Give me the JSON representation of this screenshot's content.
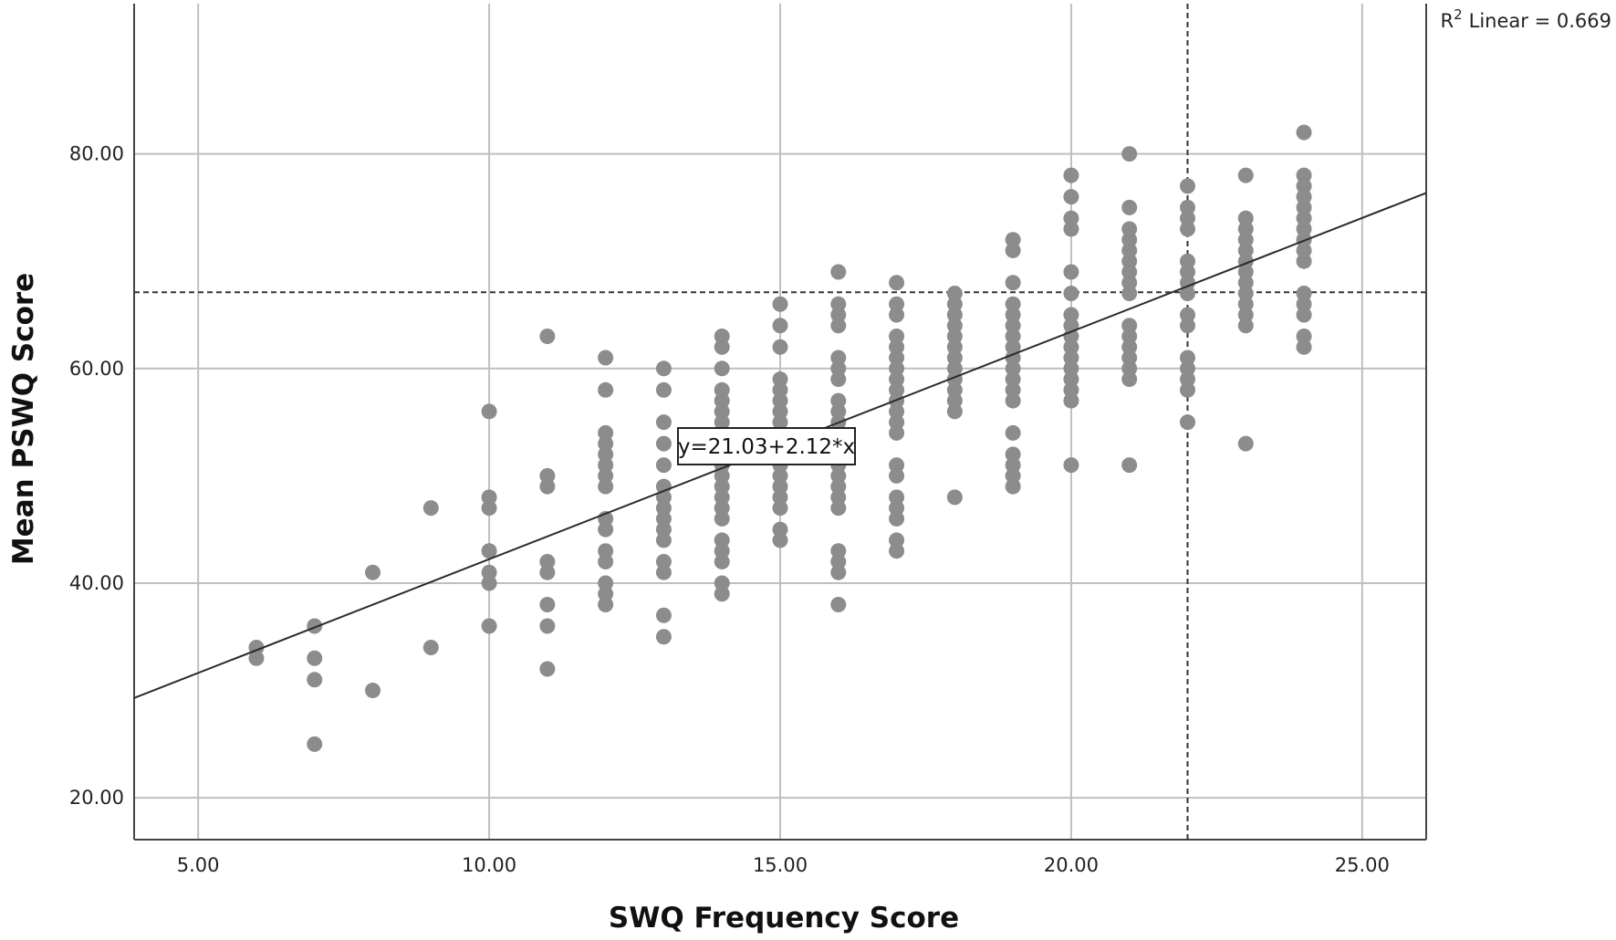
{
  "chart_data": {
    "type": "scatter",
    "xlabel": "SWQ Frequency Score",
    "ylabel": "Mean PSWQ Score",
    "xlim": [
      3.9,
      26.1
    ],
    "ylim": [
      16.1,
      94
    ],
    "x_ticks": [
      "5.00",
      "10.00",
      "15.00",
      "20.00",
      "25.00"
    ],
    "y_ticks": [
      "20.00",
      "40.00",
      "60.00",
      "80.00"
    ],
    "x_tick_values": [
      5,
      10,
      15,
      20,
      25
    ],
    "y_tick_values": [
      20,
      40,
      60,
      80
    ],
    "grid": true,
    "r_squared_label": "Linear = 0.669",
    "r_squared_prefix": "R",
    "r_squared_sup": "2",
    "fit_line": {
      "intercept": 21.03,
      "slope": 2.12,
      "label": "y=21.03+2.12*x"
    },
    "reference_lines": {
      "x": 22,
      "y": 67.1,
      "style": "dashed"
    },
    "point_color": "#8c8c8c",
    "line_color": "#2b2b2b",
    "grid_color": "#bfbfbf",
    "points": [
      [
        6,
        34
      ],
      [
        6,
        33
      ],
      [
        7,
        36
      ],
      [
        7,
        33
      ],
      [
        7,
        31
      ],
      [
        7,
        25
      ],
      [
        8,
        41
      ],
      [
        8,
        30
      ],
      [
        9,
        47
      ],
      [
        9,
        34
      ],
      [
        10,
        56
      ],
      [
        10,
        48
      ],
      [
        10,
        47
      ],
      [
        10,
        43
      ],
      [
        10,
        41
      ],
      [
        10,
        40
      ],
      [
        10,
        36
      ],
      [
        11,
        63
      ],
      [
        11,
        50
      ],
      [
        11,
        49
      ],
      [
        11,
        42
      ],
      [
        11,
        41
      ],
      [
        11,
        38
      ],
      [
        11,
        36
      ],
      [
        11,
        32
      ],
      [
        12,
        61
      ],
      [
        12,
        58
      ],
      [
        12,
        54
      ],
      [
        12,
        53
      ],
      [
        12,
        52
      ],
      [
        12,
        51
      ],
      [
        12,
        50
      ],
      [
        12,
        49
      ],
      [
        12,
        46
      ],
      [
        12,
        45
      ],
      [
        12,
        43
      ],
      [
        12,
        42
      ],
      [
        12,
        40
      ],
      [
        12,
        39
      ],
      [
        12,
        38
      ],
      [
        13,
        60
      ],
      [
        13,
        58
      ],
      [
        13,
        55
      ],
      [
        13,
        53
      ],
      [
        13,
        51
      ],
      [
        13,
        49
      ],
      [
        13,
        48
      ],
      [
        13,
        47
      ],
      [
        13,
        46
      ],
      [
        13,
        45
      ],
      [
        13,
        44
      ],
      [
        13,
        42
      ],
      [
        13,
        41
      ],
      [
        13,
        37
      ],
      [
        13,
        35
      ],
      [
        14,
        63
      ],
      [
        14,
        62
      ],
      [
        14,
        60
      ],
      [
        14,
        58
      ],
      [
        14,
        57
      ],
      [
        14,
        56
      ],
      [
        14,
        55
      ],
      [
        14,
        54
      ],
      [
        14,
        53
      ],
      [
        14,
        52
      ],
      [
        14,
        51
      ],
      [
        14,
        50
      ],
      [
        14,
        49
      ],
      [
        14,
        48
      ],
      [
        14,
        47
      ],
      [
        14,
        46
      ],
      [
        14,
        44
      ],
      [
        14,
        43
      ],
      [
        14,
        42
      ],
      [
        14,
        40
      ],
      [
        14,
        39
      ],
      [
        15,
        66
      ],
      [
        15,
        64
      ],
      [
        15,
        62
      ],
      [
        15,
        59
      ],
      [
        15,
        58
      ],
      [
        15,
        57
      ],
      [
        15,
        56
      ],
      [
        15,
        55
      ],
      [
        15,
        54
      ],
      [
        15,
        53
      ],
      [
        15,
        52
      ],
      [
        15,
        51
      ],
      [
        15,
        50
      ],
      [
        15,
        49
      ],
      [
        15,
        48
      ],
      [
        15,
        47
      ],
      [
        15,
        45
      ],
      [
        15,
        44
      ],
      [
        16,
        69
      ],
      [
        16,
        66
      ],
      [
        16,
        65
      ],
      [
        16,
        64
      ],
      [
        16,
        61
      ],
      [
        16,
        60
      ],
      [
        16,
        59
      ],
      [
        16,
        57
      ],
      [
        16,
        56
      ],
      [
        16,
        55
      ],
      [
        16,
        54
      ],
      [
        16,
        53
      ],
      [
        16,
        52
      ],
      [
        16,
        51
      ],
      [
        16,
        50
      ],
      [
        16,
        49
      ],
      [
        16,
        48
      ],
      [
        16,
        47
      ],
      [
        16,
        43
      ],
      [
        16,
        42
      ],
      [
        16,
        41
      ],
      [
        16,
        38
      ],
      [
        17,
        68
      ],
      [
        17,
        66
      ],
      [
        17,
        65
      ],
      [
        17,
        63
      ],
      [
        17,
        62
      ],
      [
        17,
        61
      ],
      [
        17,
        60
      ],
      [
        17,
        59
      ],
      [
        17,
        58
      ],
      [
        17,
        57
      ],
      [
        17,
        56
      ],
      [
        17,
        55
      ],
      [
        17,
        54
      ],
      [
        17,
        51
      ],
      [
        17,
        50
      ],
      [
        17,
        48
      ],
      [
        17,
        47
      ],
      [
        17,
        46
      ],
      [
        17,
        44
      ],
      [
        17,
        43
      ],
      [
        18,
        67
      ],
      [
        18,
        66
      ],
      [
        18,
        65
      ],
      [
        18,
        64
      ],
      [
        18,
        63
      ],
      [
        18,
        62
      ],
      [
        18,
        61
      ],
      [
        18,
        60
      ],
      [
        18,
        59
      ],
      [
        18,
        58
      ],
      [
        18,
        57
      ],
      [
        18,
        56
      ],
      [
        18,
        48
      ],
      [
        19,
        72
      ],
      [
        19,
        71
      ],
      [
        19,
        68
      ],
      [
        19,
        66
      ],
      [
        19,
        65
      ],
      [
        19,
        64
      ],
      [
        19,
        63
      ],
      [
        19,
        62
      ],
      [
        19,
        61
      ],
      [
        19,
        60
      ],
      [
        19,
        59
      ],
      [
        19,
        58
      ],
      [
        19,
        57
      ],
      [
        19,
        54
      ],
      [
        19,
        52
      ],
      [
        19,
        51
      ],
      [
        19,
        50
      ],
      [
        19,
        49
      ],
      [
        20,
        78
      ],
      [
        20,
        76
      ],
      [
        20,
        74
      ],
      [
        20,
        73
      ],
      [
        20,
        69
      ],
      [
        20,
        67
      ],
      [
        20,
        65
      ],
      [
        20,
        64
      ],
      [
        20,
        63
      ],
      [
        20,
        62
      ],
      [
        20,
        61
      ],
      [
        20,
        60
      ],
      [
        20,
        59
      ],
      [
        20,
        58
      ],
      [
        20,
        57
      ],
      [
        20,
        51
      ],
      [
        21,
        80
      ],
      [
        21,
        75
      ],
      [
        21,
        73
      ],
      [
        21,
        72
      ],
      [
        21,
        71
      ],
      [
        21,
        70
      ],
      [
        21,
        69
      ],
      [
        21,
        68
      ],
      [
        21,
        67
      ],
      [
        21,
        64
      ],
      [
        21,
        63
      ],
      [
        21,
        62
      ],
      [
        21,
        61
      ],
      [
        21,
        60
      ],
      [
        21,
        59
      ],
      [
        21,
        51
      ],
      [
        22,
        77
      ],
      [
        22,
        75
      ],
      [
        22,
        74
      ],
      [
        22,
        73
      ],
      [
        22,
        70
      ],
      [
        22,
        69
      ],
      [
        22,
        68
      ],
      [
        22,
        67
      ],
      [
        22,
        65
      ],
      [
        22,
        64
      ],
      [
        22,
        61
      ],
      [
        22,
        60
      ],
      [
        22,
        59
      ],
      [
        22,
        58
      ],
      [
        22,
        55
      ],
      [
        23,
        78
      ],
      [
        23,
        74
      ],
      [
        23,
        73
      ],
      [
        23,
        72
      ],
      [
        23,
        71
      ],
      [
        23,
        70
      ],
      [
        23,
        69
      ],
      [
        23,
        68
      ],
      [
        23,
        67
      ],
      [
        23,
        66
      ],
      [
        23,
        65
      ],
      [
        23,
        64
      ],
      [
        23,
        53
      ],
      [
        24,
        82
      ],
      [
        24,
        78
      ],
      [
        24,
        77
      ],
      [
        24,
        76
      ],
      [
        24,
        75
      ],
      [
        24,
        74
      ],
      [
        24,
        73
      ],
      [
        24,
        72
      ],
      [
        24,
        71
      ],
      [
        24,
        70
      ],
      [
        24,
        67
      ],
      [
        24,
        66
      ],
      [
        24,
        65
      ],
      [
        24,
        63
      ],
      [
        24,
        62
      ]
    ]
  }
}
